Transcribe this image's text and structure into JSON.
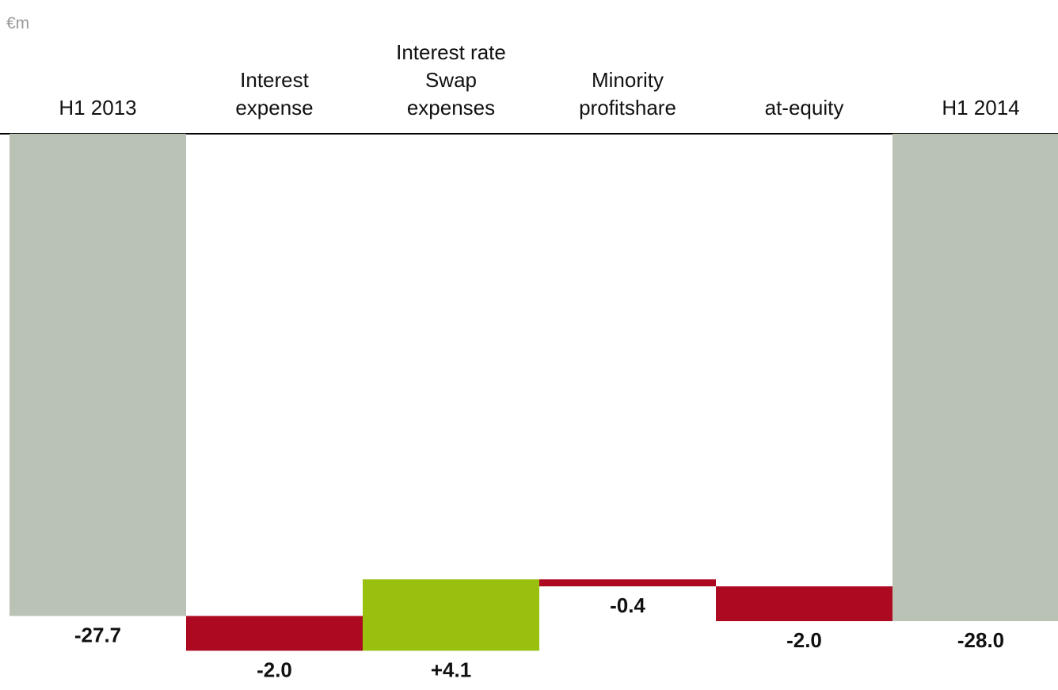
{
  "chart_data": {
    "type": "waterfall",
    "unit_label": "€m",
    "categories": [
      [
        "H1 2013"
      ],
      [
        "Interest",
        "expense"
      ],
      [
        "Interest rate",
        "Swap",
        "expenses"
      ],
      [
        "Minority",
        "profitshare"
      ],
      [
        "at-equity"
      ],
      [
        "H1 2014"
      ]
    ],
    "steps": [
      {
        "kind": "total",
        "value": -27.7,
        "label": "-27.7"
      },
      {
        "kind": "delta",
        "value": -2.0,
        "label": "-2.0"
      },
      {
        "kind": "delta",
        "value": 4.1,
        "label": "+4.1"
      },
      {
        "kind": "delta",
        "value": -0.4,
        "label": "-0.4"
      },
      {
        "kind": "delta",
        "value": -2.0,
        "label": "-2.0"
      },
      {
        "kind": "total",
        "value": -28.0,
        "label": "-28.0"
      }
    ],
    "colors": {
      "total": "#b9c2b5",
      "decrease": "#ad0a22",
      "increase": "#99c00e",
      "axis": "#000000"
    }
  }
}
